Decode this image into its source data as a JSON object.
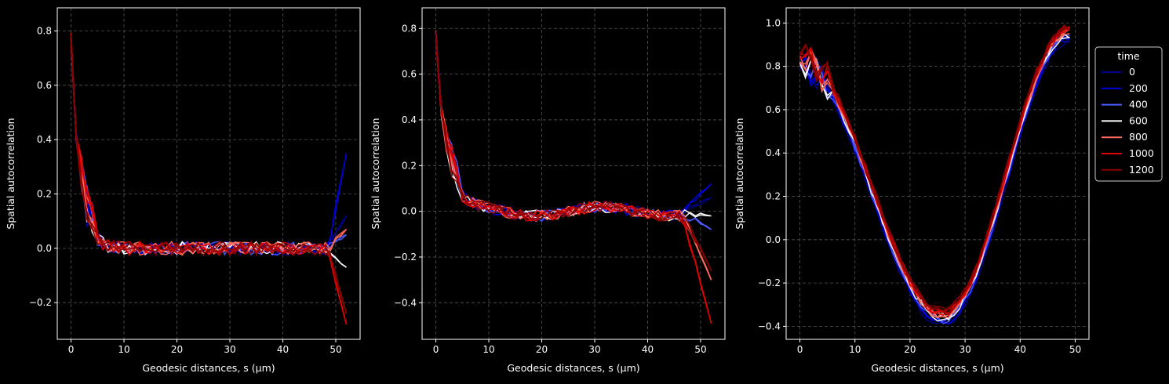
{
  "palette": {
    "background": "#000000",
    "axis": "#ffffff",
    "grid": "#555555",
    "time_colors": [
      "#00008b",
      "#0000dd",
      "#4d5bff",
      "#ffffff",
      "#ff6a5a",
      "#e00000",
      "#8b0000"
    ]
  },
  "legend": {
    "title": "time",
    "placement": "right of third panel, top",
    "entries": [
      "0",
      "200",
      "400",
      "600",
      "800",
      "1000",
      "1200"
    ]
  },
  "chart_data": [
    {
      "type": "line",
      "xlabel": "Geodesic distances, s (μm)",
      "ylabel": "Spatial autocorrelation",
      "xlim": [
        -2.6,
        54.6
      ],
      "ylim": [
        -0.335,
        0.885
      ],
      "xticks": [
        0,
        10,
        20,
        30,
        40,
        50
      ],
      "yticks": [
        -0.2,
        0.0,
        0.2,
        0.4,
        0.6,
        0.8
      ],
      "grid": true,
      "shape": {
        "x_max": 52,
        "start": 0.77,
        "decay_scale": 1.6,
        "end_values": [
          0.12,
          0.35,
          0.05,
          -0.07,
          0.07,
          -0.28,
          -0.24
        ],
        "end_start": 48.5
      },
      "series": [
        {
          "name": "0",
          "values_note": "curve"
        },
        {
          "name": "200"
        },
        {
          "name": "400"
        },
        {
          "name": "600"
        },
        {
          "name": "800"
        },
        {
          "name": "1000"
        },
        {
          "name": "1200"
        }
      ]
    },
    {
      "type": "line",
      "xlabel": "Geodesic distances, s (μm)",
      "ylabel": "Spatial autocorrelation",
      "xlim": [
        -2.6,
        54.6
      ],
      "ylim": [
        -0.56,
        0.89
      ],
      "xticks": [
        0,
        10,
        20,
        30,
        40,
        50
      ],
      "yticks": [
        -0.4,
        -0.2,
        0.0,
        0.2,
        0.4,
        0.6,
        0.8
      ],
      "grid": true,
      "shape": {
        "x_max": 52,
        "start": 0.77,
        "decay_scale": 1.8,
        "end_values": [
          0.06,
          0.12,
          -0.08,
          -0.02,
          -0.3,
          -0.49,
          -0.26
        ],
        "end_start": 46.5
      },
      "series": [
        {
          "name": "0"
        },
        {
          "name": "200"
        },
        {
          "name": "400"
        },
        {
          "name": "600"
        },
        {
          "name": "800"
        },
        {
          "name": "1000"
        },
        {
          "name": "1200"
        }
      ]
    },
    {
      "type": "line",
      "xlabel": "Geodesic distances, s (μm)",
      "ylabel": "Spatial autocorrelation",
      "xlim": [
        -2.5,
        52.5
      ],
      "ylim": [
        -0.46,
        1.07
      ],
      "xticks": [
        0,
        10,
        20,
        30,
        40,
        50
      ],
      "yticks": [
        -0.4,
        -0.2,
        0.0,
        0.2,
        0.4,
        0.6,
        0.8,
        1.0
      ],
      "grid": true,
      "shape": {
        "x_max": 49,
        "start": 0.82,
        "min_x": 26,
        "min_value": -0.36,
        "end_value": 0.95
      },
      "series": [
        {
          "name": "0"
        },
        {
          "name": "200"
        },
        {
          "name": "400"
        },
        {
          "name": "600"
        },
        {
          "name": "800"
        },
        {
          "name": "1000"
        },
        {
          "name": "1200"
        }
      ]
    }
  ]
}
